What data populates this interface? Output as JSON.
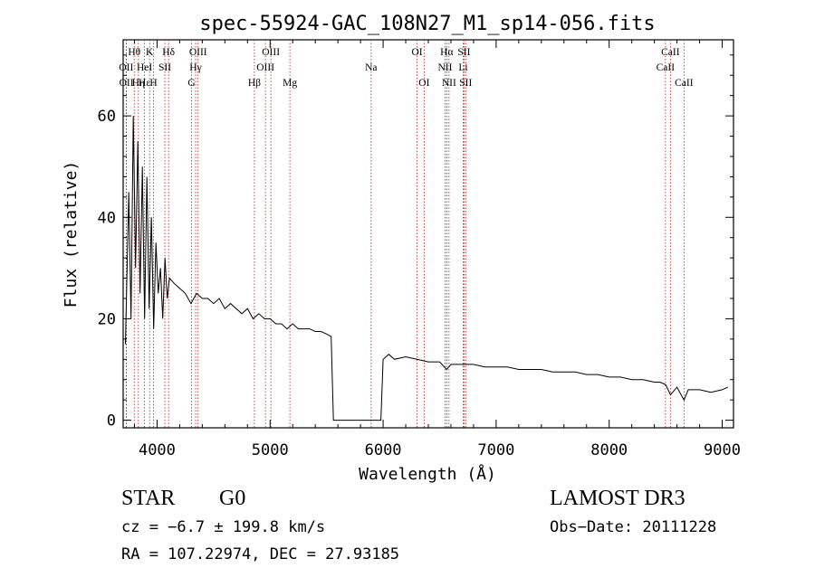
{
  "chart_data": {
    "type": "line",
    "title": "spec-55924-GAC_108N27_M1_sp14-056.fits",
    "xlabel": "Wavelength (Å)",
    "ylabel": "Flux (relative)",
    "xlim": [
      3700,
      9100
    ],
    "ylim": [
      -1.5,
      75
    ],
    "x_ticks": [
      4000,
      5000,
      6000,
      7000,
      8000,
      9000
    ],
    "x_tick_labels": [
      "4000",
      "5000",
      "6000",
      "7000",
      "8000",
      "9000"
    ],
    "y_ticks": [
      0,
      20,
      40,
      60
    ],
    "y_tick_labels": [
      "0",
      "20",
      "40",
      "60"
    ],
    "series": [
      {
        "name": "spectrum",
        "x": [
          3720,
          3750,
          3770,
          3790,
          3810,
          3830,
          3850,
          3870,
          3890,
          3910,
          3930,
          3950,
          3970,
          3990,
          4010,
          4030,
          4050,
          4070,
          4090,
          4110,
          4150,
          4200,
          4250,
          4300,
          4350,
          4400,
          4450,
          4500,
          4550,
          4600,
          4650,
          4700,
          4750,
          4800,
          4850,
          4900,
          4950,
          5000,
          5050,
          5100,
          5150,
          5200,
          5250,
          5300,
          5350,
          5400,
          5450,
          5500,
          5540,
          5560,
          5700,
          5900,
          5980,
          6000,
          6050,
          6100,
          6200,
          6300,
          6400,
          6500,
          6563,
          6600,
          6700,
          6800,
          6900,
          7000,
          7100,
          7200,
          7300,
          7400,
          7500,
          7600,
          7700,
          7800,
          7900,
          8000,
          8100,
          8200,
          8300,
          8400,
          8450,
          8500,
          8542,
          8600,
          8662,
          8700,
          8800,
          8900,
          9000,
          9050
        ],
        "y": [
          15,
          45,
          20,
          60,
          30,
          55,
          25,
          50,
          20,
          48,
          22,
          40,
          18,
          35,
          25,
          30,
          20,
          32,
          24,
          28,
          27,
          26,
          25,
          23,
          25,
          24,
          24,
          23,
          24,
          22,
          23,
          22,
          21,
          22,
          20,
          21,
          20,
          20,
          19,
          19,
          18,
          19,
          18,
          18,
          18,
          17.5,
          17.5,
          17,
          16.5,
          0,
          0,
          0,
          0,
          12,
          13,
          12,
          12.5,
          12,
          11.5,
          11.5,
          10,
          11,
          11,
          11,
          10.5,
          10.5,
          10.5,
          10,
          10,
          10,
          9.5,
          9.5,
          9.5,
          9,
          9,
          8.5,
          8.5,
          8,
          8,
          7.5,
          7.5,
          7,
          5,
          6.5,
          4,
          6,
          6,
          5.5,
          6,
          6.5
        ]
      }
    ],
    "lines": [
      {
        "label": "Hθ",
        "x": 3798,
        "row": 0
      },
      {
        "label": "OII",
        "x": 3727,
        "row": 1
      },
      {
        "label": "OII",
        "x": 3729,
        "row": 2
      },
      {
        "label": "Hε",
        "x": 3889,
        "row": 2
      },
      {
        "label": "HeI",
        "x": 3889,
        "row": 1
      },
      {
        "label": "Hη",
        "x": 3835,
        "row": 2
      },
      {
        "label": "K",
        "x": 3934,
        "row": 0
      },
      {
        "label": "H",
        "x": 3969,
        "row": 2
      },
      {
        "label": "SII",
        "x": 4069,
        "row": 1
      },
      {
        "label": "Hδ",
        "x": 4102,
        "row": 0
      },
      {
        "label": "OIII",
        "x": 4363,
        "row": 0
      },
      {
        "label": "Hγ",
        "x": 4341,
        "row": 1
      },
      {
        "label": "G",
        "x": 4305,
        "row": 2
      },
      {
        "label": "Hβ",
        "x": 4861,
        "row": 2
      },
      {
        "label": "OIII",
        "x": 5007,
        "row": 0
      },
      {
        "label": "OIII",
        "x": 4959,
        "row": 1
      },
      {
        "label": "Mg",
        "x": 5175,
        "row": 2
      },
      {
        "label": "Na",
        "x": 5894,
        "row": 1
      },
      {
        "label": "OI",
        "x": 6300,
        "row": 0
      },
      {
        "label": "OI",
        "x": 6363,
        "row": 2
      },
      {
        "label": "Hα",
        "x": 6563,
        "row": 0
      },
      {
        "label": "NII",
        "x": 6548,
        "row": 1
      },
      {
        "label": "NII",
        "x": 6583,
        "row": 2
      },
      {
        "label": "SII",
        "x": 6716,
        "row": 0
      },
      {
        "label": "Li",
        "x": 6708,
        "row": 1
      },
      {
        "label": "SII",
        "x": 6731,
        "row": 2
      },
      {
        "label": "CaII",
        "x": 8542,
        "row": 0
      },
      {
        "label": "CaII",
        "x": 8498,
        "row": 1
      },
      {
        "label": "CaII",
        "x": 8662,
        "row": 2
      }
    ]
  },
  "info": {
    "object_class": "STAR",
    "subclass": "G0",
    "survey": "LAMOST DR3",
    "cz": "cz = −6.7 ± 199.8 km/s",
    "obs_date": "Obs−Date: 20111228",
    "coords": "RA = 107.22974, DEC =  27.93185"
  },
  "colors": {
    "line_marker": "#b22222",
    "spectrum": "#000000",
    "axis": "#000000"
  }
}
